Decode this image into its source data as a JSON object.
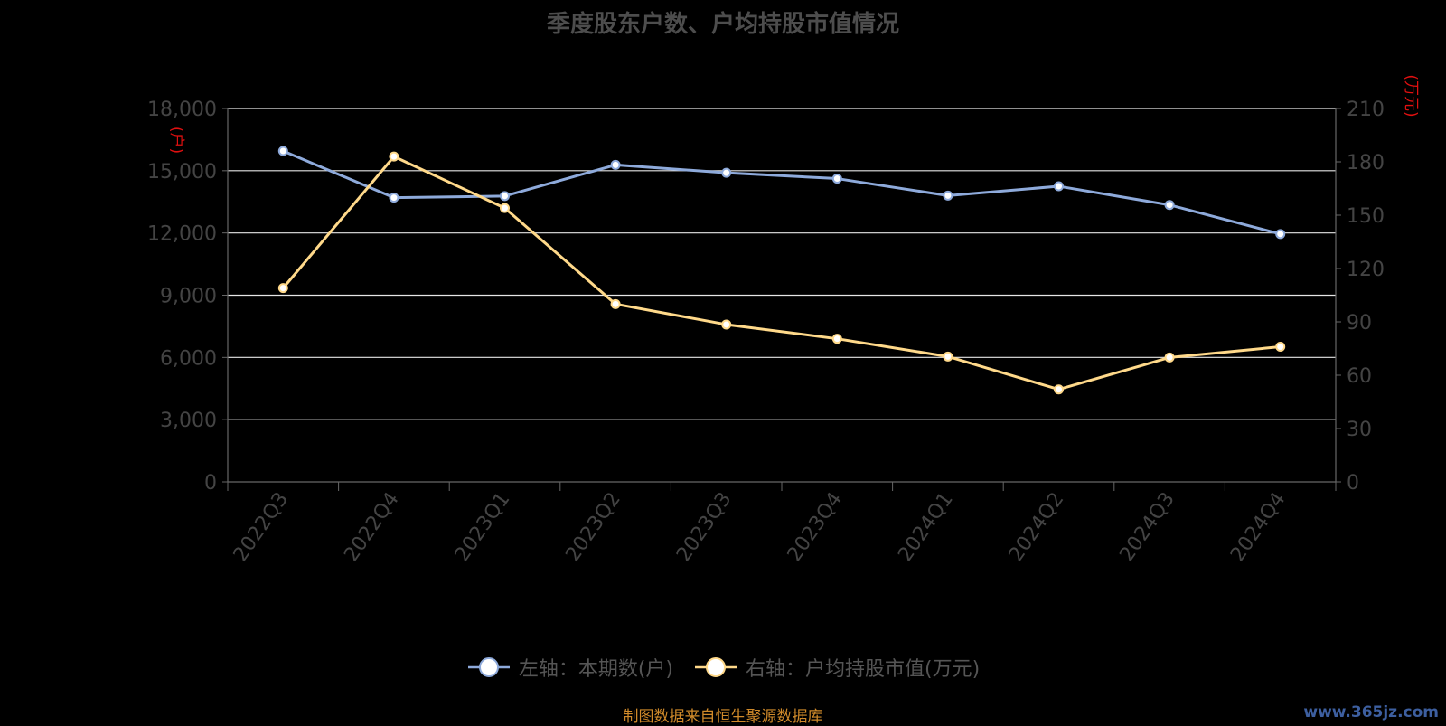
{
  "chart_data": {
    "type": "line",
    "title": "季度股东户数、户均持股市值情况",
    "categories": [
      "2022Q3",
      "2022Q4",
      "2023Q1",
      "2023Q2",
      "2023Q3",
      "2023Q4",
      "2024Q1",
      "2024Q2",
      "2024Q3",
      "2024Q4"
    ],
    "y_left": {
      "label": "(户)",
      "ticks": [
        "0",
        "3,000",
        "6,000",
        "9,000",
        "12,000",
        "15,000",
        "18,000"
      ],
      "min": 0,
      "max": 18000
    },
    "y_right": {
      "label": "(万元)",
      "ticks": [
        "0",
        "30",
        "60",
        "90",
        "120",
        "150",
        "180",
        "210"
      ],
      "min": 0,
      "max": 210
    },
    "series": [
      {
        "name": "左轴：本期数(户)",
        "axis": "left",
        "color": "#8eaadb",
        "values": [
          15950,
          13700,
          13780,
          15280,
          14900,
          14620,
          13800,
          14250,
          13350,
          11950
        ]
      },
      {
        "name": "右轴：户均持股市值(万元)",
        "axis": "right",
        "color": "#ffd98a",
        "values": [
          109,
          183,
          154,
          100,
          88.5,
          80.5,
          70.5,
          52,
          70,
          76
        ]
      }
    ],
    "grid": true,
    "legend_position": "bottom"
  },
  "source_note": "制图数据来自恒生聚源数据库",
  "watermark": "www.365jz.com"
}
